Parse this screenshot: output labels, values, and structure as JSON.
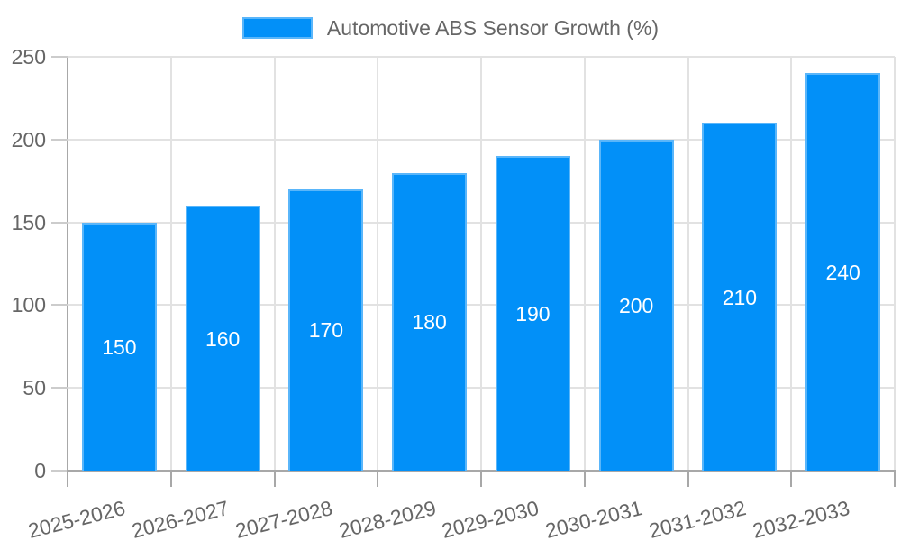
{
  "chart_data": {
    "type": "bar",
    "title": "",
    "legend_label": "Automotive ABS Sensor Growth (%)",
    "legend_position": "top-center",
    "categories": [
      "2025-2026",
      "2026-2027",
      "2027-2028",
      "2028-2029",
      "2029-2030",
      "2030-2031",
      "2031-2032",
      "2032-2033"
    ],
    "values": [
      150,
      160,
      170,
      180,
      190,
      200,
      210,
      240
    ],
    "xlabel": "",
    "ylabel": "",
    "ylim": [
      0,
      250
    ],
    "yticks": [
      0,
      50,
      100,
      150,
      200,
      250
    ],
    "grid": true,
    "bar_labels_position": "center",
    "x_label_rotation_deg": -14,
    "colors": {
      "bar": "#0290F8",
      "bar_label": "#FFFFFF",
      "axis_text": "#666666",
      "grid_line": "#E2E2E2",
      "axis_line": "#A8A8A8",
      "y_tick": "#CCCCCC",
      "x_tick": "#A8A8A8",
      "background": "#FFFFFF"
    }
  }
}
